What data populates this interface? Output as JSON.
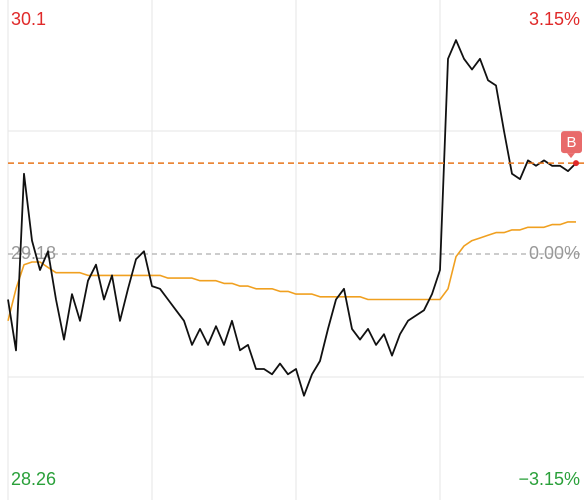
{
  "chart_data": {
    "type": "line",
    "ylim": [
      28.26,
      30.1
    ],
    "yticks": [
      28.26,
      29.18,
      30.1
    ],
    "ygrid": [
      28.72,
      29.64
    ],
    "y2lim": [
      -3.15,
      3.15
    ],
    "y2ticks": [
      {
        "value": -3.15,
        "label": "−3.15%"
      },
      {
        "value": 0,
        "label": "0.00%"
      },
      {
        "value": 3.15,
        "label": "3.15%"
      }
    ],
    "reference": 29.18,
    "up_color": "#e02a2a",
    "down_color": "#2aa03a",
    "flat_color": "#999999",
    "marker": {
      "label": "B",
      "value": 29.52,
      "color": "#e86a6a"
    },
    "series": [
      {
        "name": "price",
        "color": "#111111",
        "values": [
          29.01,
          28.82,
          29.48,
          29.23,
          29.12,
          29.19,
          29.01,
          28.86,
          29.03,
          28.93,
          29.08,
          29.14,
          29.01,
          29.1,
          28.93,
          29.05,
          29.16,
          29.19,
          29.06,
          29.05,
          29.01,
          28.97,
          28.93,
          28.84,
          28.9,
          28.84,
          28.91,
          28.84,
          28.93,
          28.82,
          28.84,
          28.75,
          28.75,
          28.73,
          28.77,
          28.73,
          28.75,
          28.65,
          28.73,
          28.78,
          28.9,
          29.01,
          29.05,
          28.9,
          28.86,
          28.9,
          28.84,
          28.88,
          28.8,
          28.88,
          28.93,
          28.95,
          28.97,
          29.03,
          29.12,
          29.91,
          29.98,
          29.91,
          29.87,
          29.91,
          29.83,
          29.81,
          29.64,
          29.48,
          29.46,
          29.53,
          29.51,
          29.53,
          29.51,
          29.51,
          29.49,
          29.52
        ]
      },
      {
        "name": "average",
        "color": "#f0a020",
        "values": [
          28.93,
          29.05,
          29.14,
          29.15,
          29.15,
          29.13,
          29.11,
          29.11,
          29.11,
          29.11,
          29.1,
          29.1,
          29.1,
          29.1,
          29.1,
          29.1,
          29.1,
          29.1,
          29.1,
          29.1,
          29.09,
          29.09,
          29.09,
          29.09,
          29.08,
          29.08,
          29.08,
          29.07,
          29.07,
          29.06,
          29.06,
          29.05,
          29.05,
          29.05,
          29.04,
          29.04,
          29.03,
          29.03,
          29.03,
          29.02,
          29.02,
          29.02,
          29.02,
          29.02,
          29.02,
          29.01,
          29.01,
          29.01,
          29.01,
          29.01,
          29.01,
          29.01,
          29.01,
          29.01,
          29.01,
          29.05,
          29.17,
          29.21,
          29.23,
          29.24,
          29.25,
          29.26,
          29.26,
          29.27,
          29.27,
          29.28,
          29.28,
          29.28,
          29.29,
          29.29,
          29.3,
          29.3
        ]
      }
    ]
  }
}
